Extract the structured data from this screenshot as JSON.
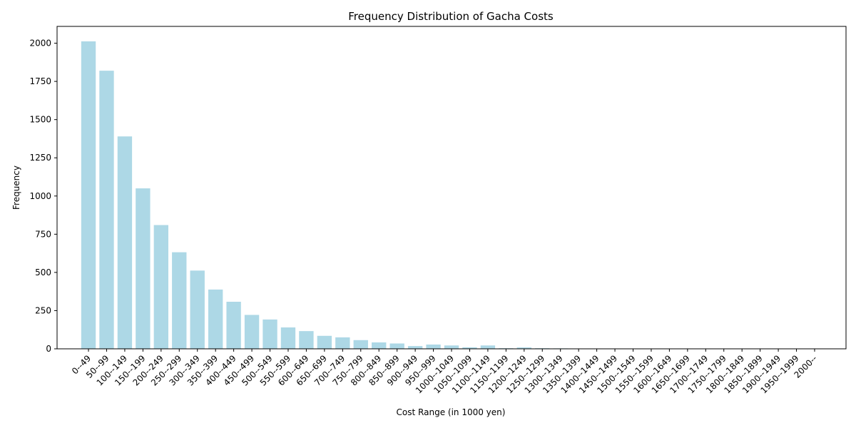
{
  "chart_data": {
    "type": "bar",
    "title": "Frequency Distribution of Gacha Costs",
    "xlabel": "Cost Range (in 1000 yen)",
    "ylabel": "Frequency",
    "ylim": [
      0,
      2110
    ],
    "yticks": [
      0,
      250,
      500,
      750,
      1000,
      1250,
      1500,
      1750,
      2000
    ],
    "bar_color": "#add8e6",
    "grid": false,
    "categories": [
      "0--49",
      "50--99",
      "100--149",
      "150--199",
      "200--249",
      "250--299",
      "300--349",
      "350--399",
      "400--449",
      "450--499",
      "500--549",
      "550--599",
      "600--649",
      "650--699",
      "700--749",
      "750--799",
      "800--849",
      "850--899",
      "900--949",
      "950--999",
      "1000--1049",
      "1050--1099",
      "1100--1149",
      "1150--1199",
      "1200--1249",
      "1250--1299",
      "1300--1349",
      "1350--1399",
      "1400--1449",
      "1450--1499",
      "1500--1549",
      "1550--1599",
      "1600--1649",
      "1650--1699",
      "1700--1749",
      "1750--1799",
      "1800--1849",
      "1850--1899",
      "1900--1949",
      "1950--1999",
      "2000--"
    ],
    "values": [
      2012,
      1820,
      1390,
      1050,
      810,
      632,
      512,
      388,
      308,
      222,
      192,
      140,
      116,
      85,
      75,
      57,
      42,
      35,
      18,
      28,
      22,
      10,
      22,
      4,
      9,
      4,
      3,
      2,
      2,
      2,
      2,
      0,
      2,
      1,
      1,
      0,
      0,
      0,
      0,
      1,
      0
    ]
  }
}
